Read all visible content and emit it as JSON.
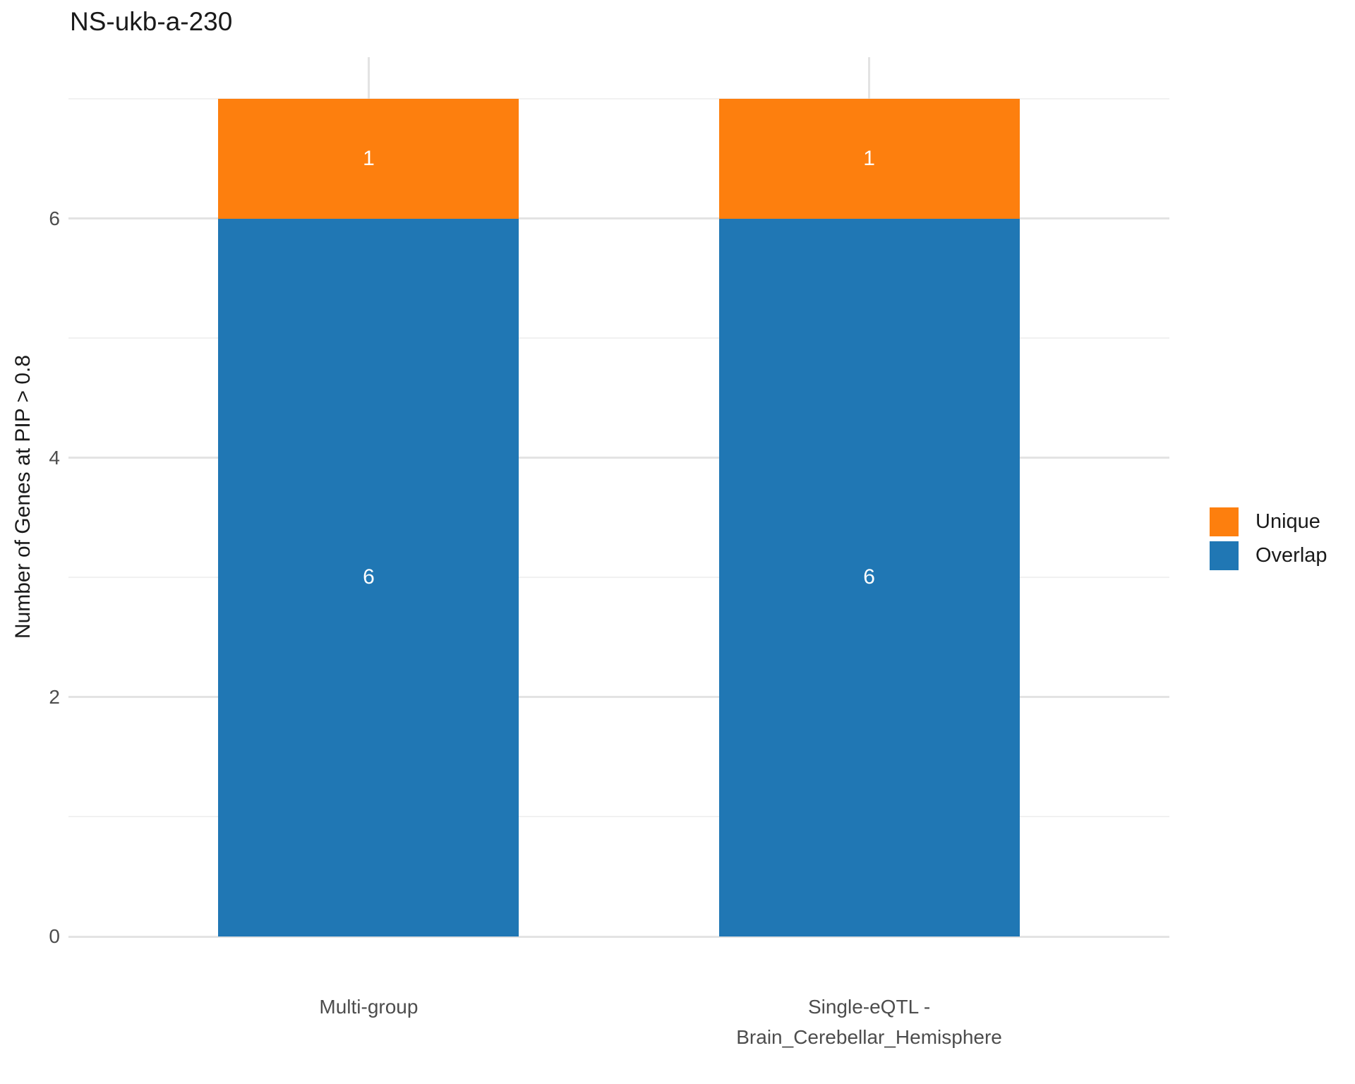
{
  "chart_data": {
    "type": "bar",
    "stacked": true,
    "title": "NS-ukb-a-230",
    "ylabel": "Number of Genes at PIP > 0.8",
    "xlabel": "",
    "categories": [
      "Multi-group",
      "Single-eQTL -\nBrain_Cerebellar_Hemisphere"
    ],
    "series": [
      {
        "name": "Overlap",
        "color": "#2077B4",
        "values": [
          6,
          6
        ]
      },
      {
        "name": "Unique",
        "color": "#FD7F0E",
        "values": [
          1,
          1
        ]
      }
    ],
    "bar_value_labels": [
      {
        "segment": "Overlap",
        "labels": [
          "6",
          "6"
        ]
      },
      {
        "segment": "Unique",
        "labels": [
          "1",
          "1"
        ]
      }
    ],
    "yticks": [
      "0",
      "2",
      "4",
      "6"
    ],
    "ytick_values": [
      0,
      2,
      4,
      6
    ],
    "y_minor_gridline_values": [
      1,
      3,
      5,
      7
    ],
    "ylim": [
      0,
      7.35
    ],
    "grid": "on",
    "legend": {
      "position": "right",
      "entries": [
        {
          "label": "Unique",
          "color": "#FD7F0E"
        },
        {
          "label": "Overlap",
          "color": "#2077B4"
        }
      ]
    }
  },
  "styles": {
    "background": "#FFFFFF",
    "title_color": "#1A1A1A",
    "axis_text_color": "#4D4D4D",
    "grid_major_color": "#E3E3E3",
    "grid_minor_color": "#F1F1F1",
    "bar_label_color": "#FFFFFF"
  }
}
